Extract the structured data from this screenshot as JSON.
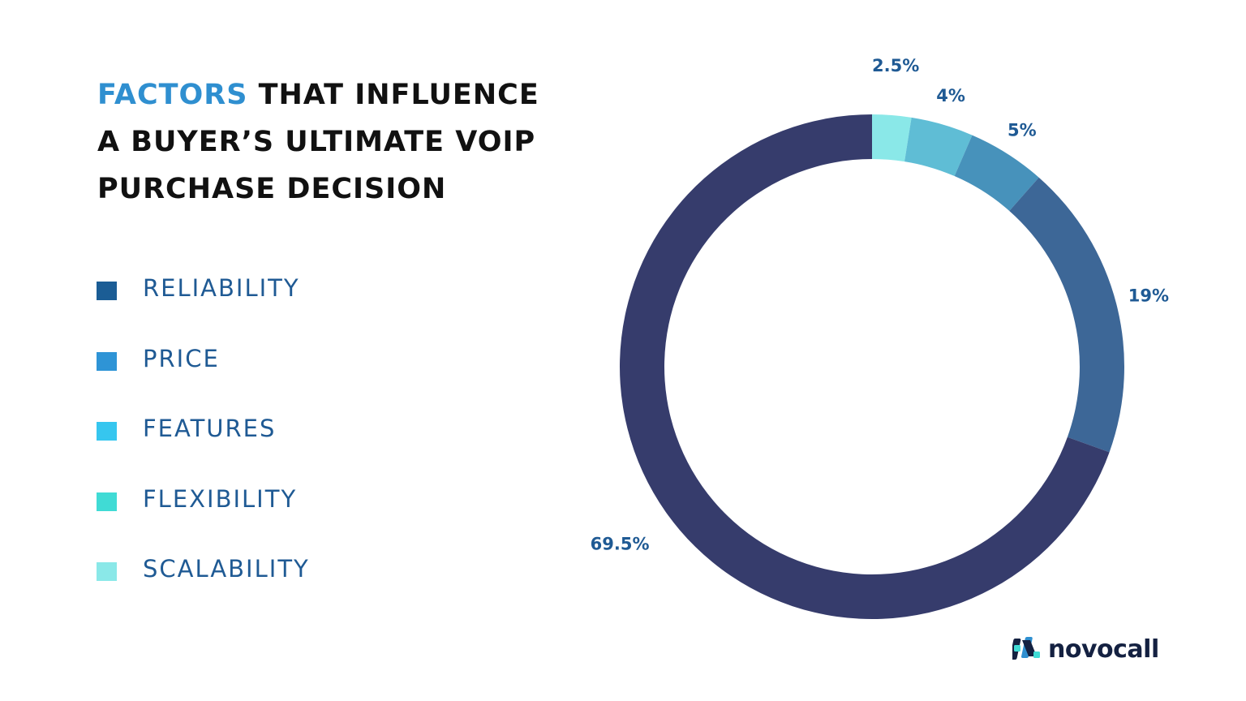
{
  "title": {
    "accent": "FACTORS",
    "rest_line1": " THAT INFLUENCE",
    "line2": "A BUYER’S ULTIMATE VOIP",
    "line3": "PURCHASE DECISION"
  },
  "legend": [
    {
      "label": "RELIABILITY",
      "color": "#1b5d95"
    },
    {
      "label": "PRICE",
      "color": "#2e94d6"
    },
    {
      "label": "FEATURES",
      "color": "#36c6ef"
    },
    {
      "label": "FLEXIBILITY",
      "color": "#40dbd5"
    },
    {
      "label": "SCALABILITY",
      "color": "#8ae8e8"
    }
  ],
  "chart_data": {
    "type": "pie",
    "variant": "donut",
    "title": "FACTORS THAT INFLUENCE A BUYER’S ULTIMATE VOIP PURCHASE DECISION",
    "categories": [
      "Scalability",
      "Flexibility",
      "Features",
      "Price",
      "Reliability"
    ],
    "values": [
      2.5,
      4,
      5,
      19,
      69.5
    ],
    "labels": [
      "2.5%",
      "4%",
      "5%",
      "19%",
      "69.5%"
    ],
    "colors": [
      "#8ae8e8",
      "#5fbdd5",
      "#4792bb",
      "#3d6797",
      "#363c6c"
    ],
    "label_color": "#1f5a94",
    "start": "top",
    "direction": "clockwise"
  },
  "logo": {
    "text": "novocall",
    "colors": [
      "#40dbd5",
      "#2f8fd0",
      "#142141"
    ]
  }
}
